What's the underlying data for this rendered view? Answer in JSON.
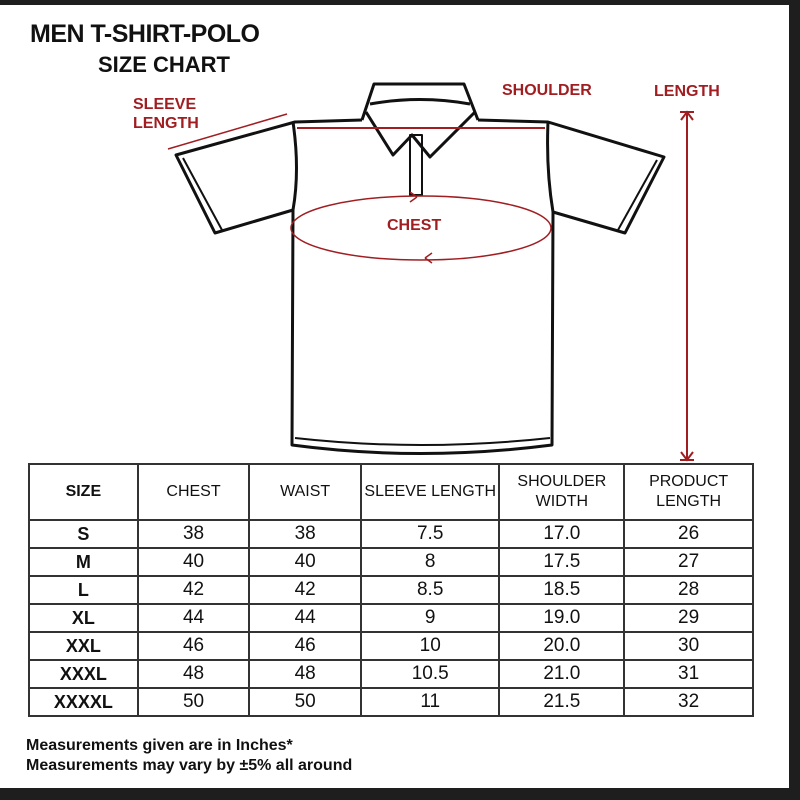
{
  "title": "MEN T-SHIRT-POLO",
  "subtitle": "SIZE CHART",
  "diagram_labels": {
    "sleeve_line1": "SLEEVE",
    "sleeve_line2": "LENGTH",
    "shoulder": "SHOULDER",
    "length": "LENGTH",
    "chest": "CHEST"
  },
  "colors": {
    "accent": "#a01e22",
    "ink": "#111111"
  },
  "table": {
    "headers": [
      "SIZE",
      "CHEST",
      "WAIST",
      "SLEEVE LENGTH",
      "SHOULDER WIDTH",
      "PRODUCT LENGTH"
    ],
    "rows": [
      [
        "S",
        "38",
        "38",
        "7.5",
        "17.0",
        "26"
      ],
      [
        "M",
        "40",
        "40",
        "8",
        "17.5",
        "27"
      ],
      [
        "L",
        "42",
        "42",
        "8.5",
        "18.5",
        "28"
      ],
      [
        "XL",
        "44",
        "44",
        "9",
        "19.0",
        "29"
      ],
      [
        "XXL",
        "46",
        "46",
        "10",
        "20.0",
        "30"
      ],
      [
        "XXXL",
        "48",
        "48",
        "10.5",
        "21.0",
        "31"
      ],
      [
        "XXXXL",
        "50",
        "50",
        "11",
        "21.5",
        "32"
      ]
    ]
  },
  "notes": [
    "Measurements given are in Inches*",
    "Measurements may vary by ±5% all around"
  ]
}
